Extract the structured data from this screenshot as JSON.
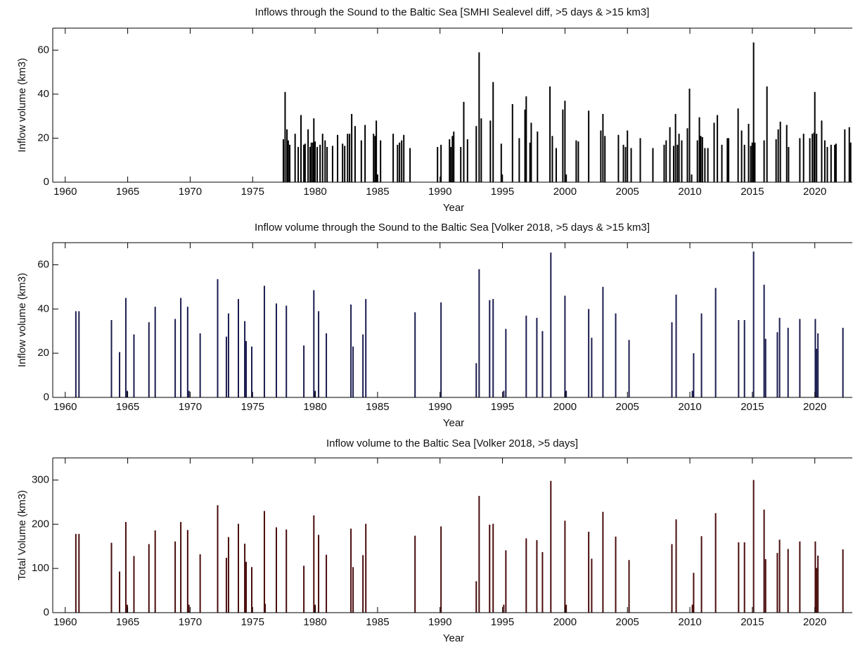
{
  "chart_data": [
    {
      "type": "bar",
      "title": "Inflows through the Sound to the Baltic Sea [SMHI Sealevel diff, >5 days & >15 km3]",
      "xlabel": "Year",
      "ylabel": "Inflow volume (km3)",
      "color": "#000000",
      "xlim": [
        1959,
        2023
      ],
      "ylim": [
        0,
        70
      ],
      "xticks": [
        1960,
        1965,
        1970,
        1975,
        1980,
        1985,
        1990,
        1995,
        2000,
        2005,
        2010,
        2015,
        2020
      ],
      "yticks": [
        0,
        20,
        40,
        60
      ],
      "x": [
        1977.46,
        1977.6,
        1977.75,
        1977.85,
        1977.97,
        1978.4,
        1978.65,
        1978.87,
        1979.1,
        1979.2,
        1979.44,
        1979.6,
        1979.7,
        1979.83,
        1979.9,
        1980.0,
        1980.17,
        1980.4,
        1980.6,
        1980.8,
        1980.96,
        1981.4,
        1981.8,
        1982.2,
        1982.37,
        1982.6,
        1982.76,
        1982.93,
        1983.2,
        1983.7,
        1984.0,
        1984.68,
        1984.8,
        1984.9,
        1985.0,
        1985.24,
        1986.25,
        1986.6,
        1986.76,
        1986.93,
        1987.1,
        1987.6,
        1989.8,
        1990.08,
        1990.76,
        1990.87,
        1990.99,
        1991.1,
        1991.66,
        1991.9,
        1992.2,
        1992.9,
        1993.13,
        1993.3,
        1994.03,
        1994.25,
        1994.9,
        1994.98,
        1995.8,
        1996.34,
        1996.8,
        1996.9,
        1997.2,
        1997.3,
        1997.8,
        1998.8,
        1998.99,
        1999.3,
        1999.83,
        2000.0,
        2000.1,
        2000.9,
        2001.07,
        2001.9,
        2002.87,
        2003.04,
        2003.2,
        2004.28,
        2004.68,
        2004.85,
        2005.0,
        2005.3,
        2006.03,
        2007.04,
        2007.94,
        2008.1,
        2008.4,
        2008.7,
        2008.85,
        2009.0,
        2009.13,
        2009.35,
        2009.8,
        2009.97,
        2010.14,
        2010.6,
        2010.76,
        2010.87,
        2011.0,
        2011.2,
        2011.44,
        2011.94,
        2012.2,
        2012.56,
        2013.0,
        2013.1,
        2013.86,
        2014.14,
        2014.37,
        2014.7,
        2014.87,
        2014.99,
        2015.1,
        2015.2,
        2015.94,
        2016.17,
        2016.9,
        2017.07,
        2017.24,
        2017.75,
        2017.9,
        2018.8,
        2019.1,
        2019.6,
        2019.8,
        2019.94,
        2020.0,
        2020.14,
        2020.55,
        2020.8,
        2021.0,
        2021.3,
        2021.6,
        2021.7,
        2022.4,
        2022.76,
        2022.87
      ],
      "values": [
        19.5,
        41,
        24,
        19,
        17,
        22,
        16,
        30.5,
        17,
        17.5,
        24,
        16,
        18,
        18,
        29,
        18.5,
        16,
        17,
        22,
        19,
        16,
        16.5,
        21.5,
        17.5,
        16.5,
        22,
        22,
        31,
        25.5,
        19,
        26,
        22,
        21,
        28,
        3.5,
        19,
        22,
        17,
        18,
        19,
        21.5,
        15.5,
        16,
        17,
        19.5,
        16,
        21,
        23,
        16,
        36.5,
        19.5,
        25.5,
        59,
        29,
        28,
        45.5,
        17.5,
        3.5,
        35.5,
        20,
        33,
        39,
        18,
        27,
        23,
        43.5,
        21,
        15.5,
        33,
        37,
        3.5,
        19,
        18.5,
        32.5,
        23.5,
        31,
        21,
        21.5,
        17,
        16,
        23.5,
        15.5,
        20,
        15.5,
        17,
        19,
        25,
        16.5,
        31,
        17,
        22,
        19,
        24.5,
        42.5,
        3.5,
        19,
        29.5,
        21,
        20.5,
        15.5,
        15.5,
        27,
        30.5,
        17,
        20,
        20,
        33.5,
        23.5,
        17,
        26.5,
        16.5,
        18,
        63.5,
        18,
        19,
        43.5,
        19.5,
        24,
        27.5,
        26,
        16,
        20,
        22,
        20,
        22,
        22.5,
        41,
        22,
        28,
        19,
        16,
        17,
        17,
        17.5,
        24,
        25,
        18
      ]
    },
    {
      "type": "bar",
      "title": "Inflow volume through the Sound to the Baltic Sea [Volker 2018, >5 days & >15 km3]",
      "xlabel": "Year",
      "ylabel": "Inflow volume (km3)",
      "color": "#1c1c50",
      "xlim": [
        1959,
        2023
      ],
      "ylim": [
        0,
        70
      ],
      "xticks": [
        1960,
        1965,
        1970,
        1975,
        1980,
        1985,
        1990,
        1995,
        2000,
        2005,
        2010,
        2015,
        2020
      ],
      "yticks": [
        0,
        20,
        40,
        60
      ],
      "x": [
        1960.85,
        1961.1,
        1963.7,
        1964.35,
        1964.85,
        1964.96,
        1965.5,
        1966.7,
        1967.2,
        1968.8,
        1969.25,
        1969.8,
        1969.9,
        1970.8,
        1972.2,
        1972.9,
        1973.07,
        1973.86,
        1974.37,
        1974.48,
        1974.93,
        1975.94,
        1976.9,
        1977.7,
        1979.1,
        1979.9,
        1980.0,
        1980.28,
        1980.9,
        1982.87,
        1983.04,
        1983.83,
        1984.06,
        1988.0,
        1990.08,
        1992.9,
        1993.13,
        1993.97,
        1994.25,
        1995.1,
        1995.27,
        1996.9,
        1997.75,
        1998.2,
        1998.87,
        2000.0,
        2000.1,
        2001.9,
        2002.14,
        2003.04,
        2004.06,
        2005.13,
        2008.56,
        2008.9,
        2010.2,
        2010.3,
        2010.93,
        2012.06,
        2013.9,
        2014.37,
        2015.1,
        2015.94,
        2016.06,
        2017.0,
        2017.18,
        2017.86,
        2018.8,
        2020.04,
        2020.14,
        2020.25,
        2022.25
      ],
      "values": [
        39,
        39,
        35,
        20.5,
        45,
        3,
        28.5,
        34,
        41,
        35.5,
        45,
        41,
        3,
        29,
        53.5,
        27.5,
        38,
        44.5,
        34.5,
        25.5,
        23,
        50.5,
        42.5,
        41.5,
        23.5,
        48.5,
        3,
        39,
        29,
        42,
        23,
        28.5,
        44.5,
        38.5,
        43,
        15.5,
        58,
        44,
        44.5,
        3,
        31,
        37,
        36,
        30,
        65.5,
        46,
        3,
        40,
        27,
        50,
        38,
        26,
        34,
        46.5,
        3,
        20,
        38,
        49.5,
        35,
        35,
        66,
        51,
        26.5,
        29.5,
        36,
        31.5,
        35.5,
        35.5,
        22,
        29,
        31.5
      ]
    },
    {
      "type": "bar",
      "title": "Inflow volume to the Baltic Sea [Volker 2018, >5 days]",
      "xlabel": "Year",
      "ylabel": "Total Volume (km3)",
      "color": "#4a0c0c",
      "xlim": [
        1959,
        2023
      ],
      "ylim": [
        0,
        350
      ],
      "xticks": [
        1960,
        1965,
        1970,
        1975,
        1980,
        1985,
        1990,
        1995,
        2000,
        2005,
        2010,
        2015,
        2020
      ],
      "yticks": [
        0,
        100,
        200,
        300
      ],
      "x": [
        1960.85,
        1961.1,
        1963.7,
        1964.35,
        1964.85,
        1964.96,
        1965.5,
        1966.7,
        1967.2,
        1968.8,
        1969.25,
        1969.8,
        1969.9,
        1970.8,
        1972.2,
        1972.9,
        1973.07,
        1973.86,
        1974.37,
        1974.48,
        1974.93,
        1975.94,
        1976.0,
        1976.9,
        1977.7,
        1979.1,
        1979.9,
        1980.0,
        1980.28,
        1980.9,
        1982.87,
        1983.04,
        1983.83,
        1984.06,
        1988.0,
        1990.08,
        1992.9,
        1993.13,
        1993.97,
        1994.25,
        1995.1,
        1995.27,
        1996.9,
        1997.75,
        1998.2,
        1998.87,
        2000.0,
        2000.1,
        2001.9,
        2002.14,
        2003.04,
        2004.06,
        2005.13,
        2008.56,
        2008.9,
        2010.2,
        2010.3,
        2010.93,
        2012.06,
        2013.9,
        2014.37,
        2015.1,
        2015.94,
        2016.06,
        2017.0,
        2017.18,
        2017.86,
        2018.8,
        2020.04,
        2020.14,
        2020.25,
        2022.25
      ],
      "values": [
        178,
        178,
        158,
        93,
        205,
        18,
        128,
        155,
        186,
        161,
        205,
        187,
        18,
        132,
        243,
        124,
        171,
        201,
        156,
        115,
        103,
        230,
        20,
        193,
        188,
        106,
        220,
        18,
        176,
        131,
        190,
        103,
        130,
        201,
        174,
        195,
        71,
        264,
        199,
        201,
        18,
        141,
        168,
        164,
        137,
        298,
        208,
        18,
        183,
        122,
        228,
        172,
        119,
        155,
        211,
        18,
        90,
        173,
        225,
        159,
        159,
        300,
        233,
        121,
        135,
        165,
        144,
        161,
        161,
        101,
        129,
        143
      ]
    }
  ]
}
